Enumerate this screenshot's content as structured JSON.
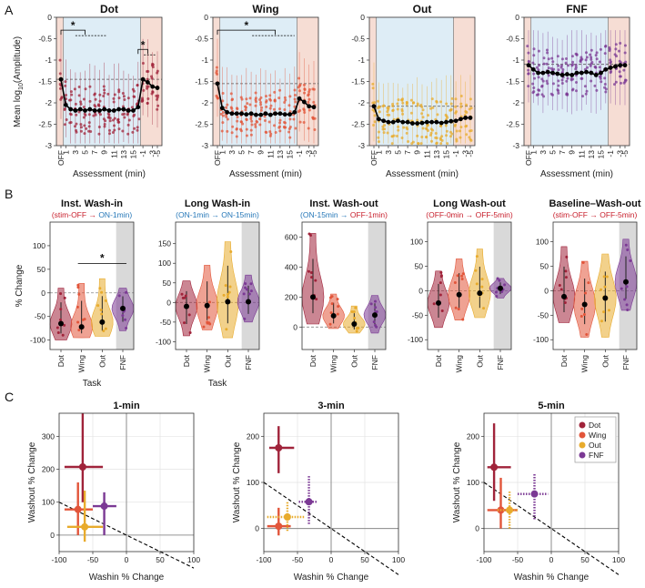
{
  "colors": {
    "Dot": "#a0233a",
    "Wing": "#e2553a",
    "Out": "#e8ab2c",
    "FNF": "#7b3994",
    "red": "#c8202d",
    "blue": "#2577b8",
    "ax": "#333333"
  },
  "panel_letters": [
    "A",
    "B",
    "C"
  ],
  "chart_data": [
    {
      "type": "line",
      "panel": "A",
      "tasks": [
        {
          "title": "Dot",
          "color": "#a0233a",
          "means": [
            -1.45,
            -2.05,
            -2.15,
            -2.18,
            -2.15,
            -2.18,
            -2.15,
            -2.18,
            -2.18,
            -2.15,
            -2.18,
            -2.18,
            -2.15,
            -2.15,
            -2.18,
            -2.18,
            -2.1,
            -1.45,
            -1.52,
            -1.62,
            -1.65
          ],
          "baseline": -1.45,
          "sig": [
            {
              "label": "*",
              "x1": 0,
              "x2": 5,
              "y": -0.3,
              "dashTo": 9.5
            },
            {
              "label": "*",
              "x1": 16,
              "x2": 18,
              "y": -0.75,
              "dashTo": 19.6
            }
          ]
        },
        {
          "title": "Wing",
          "color": "#e2553a",
          "means": [
            -1.55,
            -2.12,
            -2.22,
            -2.25,
            -2.25,
            -2.25,
            -2.27,
            -2.25,
            -2.28,
            -2.28,
            -2.25,
            -2.28,
            -2.25,
            -2.25,
            -2.27,
            -2.27,
            -2.22,
            -1.9,
            -1.98,
            -2.08,
            -2.1
          ],
          "baseline": -1.55,
          "sig": [
            {
              "label": "*",
              "x1": 0,
              "x2": 12,
              "y": -0.3,
              "dashTo": 16
            }
          ]
        },
        {
          "title": "Out",
          "color": "#e8ab2c",
          "means": [
            -2.08,
            -2.38,
            -2.42,
            -2.45,
            -2.45,
            -2.42,
            -2.45,
            -2.45,
            -2.48,
            -2.48,
            -2.47,
            -2.45,
            -2.45,
            -2.45,
            -2.47,
            -2.45,
            -2.43,
            -2.42,
            -2.38,
            -2.35,
            -2.35
          ],
          "baseline": -2.08,
          "sig": []
        },
        {
          "title": "FNF",
          "color": "#7b3994",
          "means": [
            -1.12,
            -1.22,
            -1.3,
            -1.3,
            -1.28,
            -1.3,
            -1.32,
            -1.35,
            -1.33,
            -1.35,
            -1.3,
            -1.3,
            -1.28,
            -1.3,
            -1.35,
            -1.3,
            -1.22,
            -1.18,
            -1.15,
            -1.12,
            -1.12
          ],
          "baseline": -1.1,
          "sig": []
        }
      ],
      "xticklabels": [
        "OFF",
        "1",
        "3",
        "5",
        "7",
        "9",
        "11",
        "13",
        "15",
        "-1",
        "-3",
        "-5"
      ],
      "xtick_index": [
        0,
        1,
        3,
        5,
        7,
        9,
        11,
        13,
        15,
        17,
        19,
        20
      ],
      "ylim": [
        -3,
        0
      ],
      "yticks": [
        "0",
        "-0.5",
        "-1",
        "-1.5",
        "-2",
        "-2.5",
        "-3"
      ],
      "xlabel": "Assessment (min)",
      "ylabel_prefix": "Mean log",
      "ylabel_sub": "10",
      "ylabel_suffix": "(Amplitude)"
    },
    {
      "type": "violin",
      "panel": "B",
      "tasks": [
        "Dot",
        "Wing",
        "Out",
        "FNF"
      ],
      "xlabel": "Task",
      "ylabel": "% Change",
      "panels": [
        {
          "title": "Inst. Wash-in",
          "subtitle": [
            {
              "t": "(",
              "c": "red"
            },
            {
              "t": "stim-OFF",
              "c": "red"
            },
            {
              "t": " → ",
              "c": "red"
            },
            {
              "t": "ON-1min",
              "c": "blue"
            },
            {
              "t": ")",
              "c": "blue"
            }
          ],
          "ylim": [
            -120,
            150
          ],
          "yticks": [
            "100",
            "50",
            "0",
            "-50",
            "-100"
          ],
          "ytick_vals": [
            100,
            50,
            0,
            -50,
            -100
          ],
          "medians": [
            -65,
            -72,
            -62,
            -33
          ],
          "spread": [
            [
              -100,
              10
            ],
            [
              -95,
              20
            ],
            [
              -92,
              30
            ],
            [
              -80,
              10
            ]
          ],
          "sig": {
            "label": "*",
            "from": 1,
            "to": 3,
            "y": 62
          }
        },
        {
          "title": "Long Wash-in",
          "subtitle": [
            {
              "t": "(",
              "c": "blue"
            },
            {
              "t": "ON-1min",
              "c": "blue"
            },
            {
              "t": " → ",
              "c": "blue"
            },
            {
              "t": "ON-15min",
              "c": "blue"
            },
            {
              "t": ")",
              "c": "blue"
            }
          ],
          "ylim": [
            -120,
            205
          ],
          "yticks": [
            "150",
            "100",
            "50",
            "0",
            "-50",
            "-100"
          ],
          "ytick_vals": [
            150,
            100,
            50,
            0,
            -50,
            -100
          ],
          "medians": [
            -10,
            -8,
            2,
            2
          ],
          "spread": [
            [
              -85,
              55
            ],
            [
              -70,
              95
            ],
            [
              -90,
              155
            ],
            [
              -50,
              70
            ]
          ]
        },
        {
          "title": "Inst. Wash-out",
          "subtitle": [
            {
              "t": "(",
              "c": "blue"
            },
            {
              "t": "ON-15min",
              "c": "blue"
            },
            {
              "t": " → ",
              "c": "blue"
            },
            {
              "t": "OFF-1min",
              "c": "red"
            },
            {
              "t": ")",
              "c": "red"
            }
          ],
          "ylim": [
            -150,
            700
          ],
          "yticks": [
            "600",
            "400",
            "200",
            "0"
          ],
          "ytick_vals": [
            600,
            400,
            200,
            0
          ],
          "medians": [
            200,
            75,
            20,
            80
          ],
          "spread": [
            [
              20,
              625
            ],
            [
              -10,
              220
            ],
            [
              -40,
              140
            ],
            [
              -40,
              210
            ]
          ]
        },
        {
          "title": "Long Wash-out",
          "subtitle": [
            {
              "t": "(",
              "c": "red"
            },
            {
              "t": "OFF-0min",
              "c": "red"
            },
            {
              "t": " → ",
              "c": "red"
            },
            {
              "t": "OFF-5min",
              "c": "red"
            },
            {
              "t": ")",
              "c": "red"
            }
          ],
          "ylim": [
            -120,
            140
          ],
          "yticks": [
            "100",
            "50",
            "0",
            "-50",
            "-100"
          ],
          "ytick_vals": [
            100,
            50,
            0,
            -50,
            -100
          ],
          "medians": [
            -25,
            -8,
            -5,
            5
          ],
          "spread": [
            [
              -75,
              40
            ],
            [
              -60,
              65
            ],
            [
              -55,
              85
            ],
            [
              -15,
              25
            ]
          ]
        },
        {
          "title": "Baseline–Wash-out",
          "subtitle": [
            {
              "t": "(",
              "c": "red"
            },
            {
              "t": "stim-OFF",
              "c": "red"
            },
            {
              "t": " → ",
              "c": "red"
            },
            {
              "t": "OFF-5min",
              "c": "red"
            },
            {
              "t": ")",
              "c": "red"
            }
          ],
          "ylim": [
            -120,
            140
          ],
          "yticks": [
            "100",
            "50",
            "0",
            "-50",
            "-100"
          ],
          "ytick_vals": [
            100,
            50,
            0,
            -50,
            -100
          ],
          "medians": [
            -12,
            -28,
            -15,
            18
          ],
          "spread": [
            [
              -65,
              90
            ],
            [
              -95,
              60
            ],
            [
              -95,
              75
            ],
            [
              -40,
              105
            ]
          ]
        }
      ]
    },
    {
      "type": "scatter",
      "panel": "C",
      "xlabel": "Washin % Change",
      "ylabel": "Washout % Change",
      "xlim": [
        -100,
        100
      ],
      "xticks": [
        -100,
        -50,
        0,
        50,
        100
      ],
      "yticks": [
        0,
        100,
        200,
        300
      ],
      "reference_line": {
        "x": [
          -100,
          100
        ],
        "y": [
          100,
          -100
        ]
      },
      "legend": [
        "Dot",
        "Wing",
        "Out",
        "FNF"
      ],
      "legend_placement": "top-right",
      "panels": [
        {
          "title": "1-min",
          "ylim": [
            -50,
            370
          ],
          "points": [
            {
              "task": "Dot",
              "x": -65,
              "y": 207,
              "xe": [
                -92,
                -35
              ],
              "ye": [
                100,
                370
              ],
              "dotted": false
            },
            {
              "task": "Wing",
              "x": -72,
              "y": 78,
              "xe": [
                -92,
                -50
              ],
              "ye": [
                0,
                160
              ],
              "dotted": false
            },
            {
              "task": "Out",
              "x": -62,
              "y": 25,
              "xe": [
                -88,
                -35
              ],
              "ye": [
                -20,
                135
              ],
              "dotted": false
            },
            {
              "task": "FNF",
              "x": -33,
              "y": 88,
              "xe": [
                -50,
                -15
              ],
              "ye": [
                0,
                130
              ],
              "dotted": false
            }
          ]
        },
        {
          "title": "3-min",
          "ylim": [
            -50,
            250
          ],
          "points": [
            {
              "task": "Dot",
              "x": -78,
              "y": 175,
              "xe": [
                -92,
                -55
              ],
              "ye": [
                120,
                222
              ],
              "dotted": false
            },
            {
              "task": "Wing",
              "x": -78,
              "y": 5,
              "xe": [
                -95,
                -60
              ],
              "ye": [
                -15,
                45
              ],
              "dotted": false
            },
            {
              "task": "Out",
              "x": -65,
              "y": 25,
              "xe": [
                -95,
                -40
              ],
              "ye": [
                -5,
                60
              ],
              "dotted": true
            },
            {
              "task": "FNF",
              "x": -33,
              "y": 58,
              "xe": [
                -48,
                -20
              ],
              "ye": [
                10,
                115
              ],
              "dotted": true
            }
          ]
        },
        {
          "title": "5-min",
          "ylim": [
            -50,
            250
          ],
          "points": [
            {
              "task": "Dot",
              "x": -85,
              "y": 133,
              "xe": [
                -95,
                -60
              ],
              "ye": [
                60,
                228
              ],
              "dotted": false
            },
            {
              "task": "Wing",
              "x": -75,
              "y": 40,
              "xe": [
                -95,
                -50
              ],
              "ye": [
                0,
                110
              ],
              "dotted": false
            },
            {
              "task": "Out",
              "x": -62,
              "y": 40,
              "xe": [
                -80,
                -50
              ],
              "ye": [
                0,
                80
              ],
              "dotted": true
            },
            {
              "task": "FNF",
              "x": -25,
              "y": 75,
              "xe": [
                -50,
                -5
              ],
              "ye": [
                20,
                120
              ],
              "dotted": true
            }
          ]
        }
      ]
    }
  ]
}
